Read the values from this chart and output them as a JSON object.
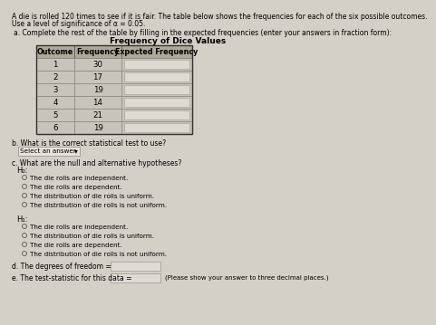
{
  "title_line1": "A die is rolled 120 times to see if it is fair. The table below shows the frequencies for each of the six possible outcomes.",
  "title_line2": "Use a level of significance of α = 0.05.",
  "section_a": "a. Complete the rest of the table by filling in the expected frequencies (enter your answers in fraction form):",
  "table_title": "Frequency of Dice Values",
  "col_headers": [
    "Outcome",
    "Frequency",
    "Expected Frequency"
  ],
  "rows": [
    [
      "1",
      "30",
      ""
    ],
    [
      "2",
      "17",
      ""
    ],
    [
      "3",
      "19",
      ""
    ],
    [
      "4",
      "14",
      ""
    ],
    [
      "5",
      "21",
      ""
    ],
    [
      "6",
      "19",
      ""
    ]
  ],
  "section_b": "b. What is the correct statistical test to use?",
  "select_answer": "Select an answer",
  "section_c": "c. What are the null and alternative hypotheses?",
  "H0_label": "H₀:",
  "H0_options": [
    "The die rolls are independent.",
    "The die rolls are dependent.",
    "The distribution of die rolls is uniform.",
    "The distribution of die rolls is not uniform."
  ],
  "H1_label": "H₁:",
  "H1_options": [
    "The die rolls are independent.",
    "The distribution of die rolls is uniform.",
    "The die rolls are dependent.",
    "The distribution of die rolls is not uniform."
  ],
  "section_d": "d. The degrees of freedom =",
  "section_e": "e. The test-statistic for this data =",
  "section_e_note": "(Please show your answer to three decimal places.)",
  "bg_color": "#d4d0c8",
  "table_header_bg": "#b0a898",
  "table_cell_bg": "#c8c4bc",
  "input_box_color": "#dedad4",
  "text_color": "#000000",
  "select_box_color": "#e8e4dc"
}
